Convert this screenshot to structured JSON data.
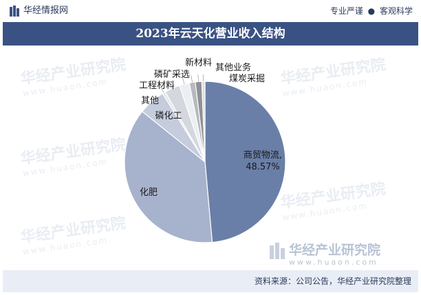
{
  "header": {
    "brand": "华经情报网",
    "slogan_left": "专业严谨",
    "slogan_sep": "●",
    "slogan_right": "客观科学"
  },
  "title_bar": {
    "title": "2023年云天化营业收入结构"
  },
  "watermark": {
    "text": "华经产业研究院",
    "url": "www.huaon.com"
  },
  "footer": {
    "source": "资料来源：公司公告，华经产业研究院整理"
  },
  "colors": {
    "title_bg": "#3a5283",
    "footer_bg": "#e9edf5",
    "slices": [
      "#6a7fa8",
      "#a7b2cc",
      "#c5ccdc",
      "#e2e6ee",
      "#d4d7dd",
      "#eceef2",
      "#b7b9be",
      "#8f9196",
      "#dcdee2"
    ]
  },
  "chart_data": {
    "type": "pie",
    "title": "2023年云天化营业收入结构",
    "start": "12 o'clock, clockwise",
    "slices": [
      {
        "label": "商贸物流",
        "value": 48.57,
        "value_label": "48.57%"
      },
      {
        "label": "化肥",
        "value": 37.2
      },
      {
        "label": "磷化工",
        "value": 5.4
      },
      {
        "label": "其他",
        "value": 0.6
      },
      {
        "label": "工程材料",
        "value": 3.1
      },
      {
        "label": "磷矿采选",
        "value": 2.0
      },
      {
        "label": "新材料",
        "value": 1.2
      },
      {
        "label": "其他业务",
        "value": 1.3
      },
      {
        "label": "煤炭采掘",
        "value": 0.63
      }
    ]
  }
}
